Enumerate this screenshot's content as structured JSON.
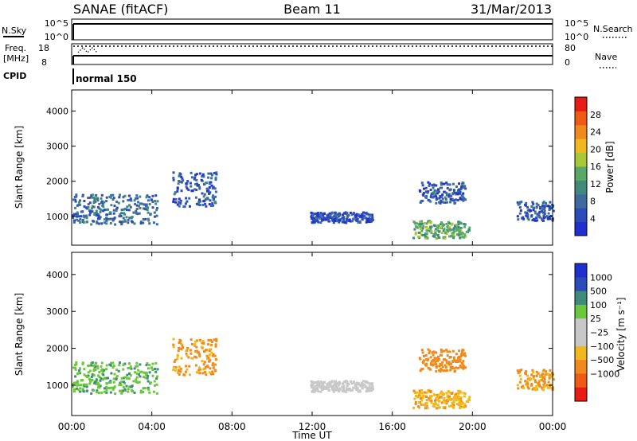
{
  "header": {
    "station": "SANAE (fitACF)",
    "beam": "Beam 11",
    "date": "31/Mar/2013"
  },
  "status_panels": {
    "nsky": {
      "label": "N.Sky",
      "ticks": [
        "10^5",
        "10^0"
      ]
    },
    "nsearch": {
      "label": "N.Search",
      "ticks": [
        "10^5",
        "10^0"
      ]
    },
    "freq": {
      "label_top": "Freq.",
      "label_unit": "[MHz]",
      "ticks": [
        "18",
        "8"
      ]
    },
    "nave": {
      "label": "Nave",
      "ticks": [
        "80",
        "0"
      ]
    },
    "cpid": {
      "label": "CPID",
      "value": "normal 150"
    }
  },
  "colors": {
    "power": [
      "#1f2fd0",
      "#2a4bb8",
      "#3f6aa0",
      "#3f8a7a",
      "#58a868",
      "#a8c838",
      "#f0b81c",
      "#f08a1c",
      "#f05a14",
      "#e81c14"
    ],
    "velocity": [
      "#e81c14",
      "#f05a14",
      "#f08a1c",
      "#f0b81c",
      "#c8c8c8",
      "#c8c8c8",
      "#6ac83a",
      "#3f8a7a",
      "#2a4bb8",
      "#1f2fd0"
    ]
  },
  "chart_data": [
    {
      "type": "heatmap",
      "title": "",
      "xlabel": "",
      "ylabel": "Slant Range [km]",
      "xlim": [
        0,
        24
      ],
      "ylim": [
        180,
        4600
      ],
      "y_ticks": [
        "1000",
        "2000",
        "3000",
        "4000"
      ],
      "y_tick_values": [
        1000,
        2000,
        3000,
        4000
      ],
      "colorbar": {
        "label": "Power [dB]",
        "ticks": [
          "4",
          "8",
          "12",
          "16",
          "20",
          "24",
          "28"
        ],
        "tick_values": [
          4,
          8,
          12,
          16,
          20,
          24,
          28
        ],
        "range": [
          0,
          32
        ]
      },
      "echo_regions": [
        {
          "t0": 0.0,
          "t1": 4.3,
          "r0": 800,
          "r1": 1650,
          "level": 8
        },
        {
          "t0": 5.0,
          "t1": 7.2,
          "r0": 1300,
          "r1": 2300,
          "level": 6
        },
        {
          "t0": 11.9,
          "t1": 15.0,
          "r0": 850,
          "r1": 1150,
          "level": 5
        },
        {
          "t0": 17.3,
          "t1": 19.6,
          "r0": 1400,
          "r1": 2000,
          "level": 6
        },
        {
          "t0": 17.0,
          "t1": 19.8,
          "r0": 400,
          "r1": 900,
          "level": 14
        },
        {
          "t0": 22.2,
          "t1": 24.0,
          "r0": 900,
          "r1": 1450,
          "level": 6
        }
      ]
    },
    {
      "type": "heatmap",
      "title": "",
      "xlabel": "Time UT",
      "ylabel": "Slant Range [km]",
      "xlim": [
        0,
        24
      ],
      "ylim": [
        180,
        4600
      ],
      "x_ticks": [
        "00:00",
        "04:00",
        "08:00",
        "12:00",
        "16:00",
        "20:00",
        "00:00"
      ],
      "x_tick_values": [
        0,
        4,
        8,
        12,
        16,
        20,
        24
      ],
      "y_ticks": [
        "1000",
        "2000",
        "3000",
        "4000"
      ],
      "y_tick_values": [
        1000,
        2000,
        3000,
        4000
      ],
      "colorbar": {
        "label": "Velocity [m s⁻¹]",
        "ticks": [
          "1000",
          "500",
          "100",
          "25",
          "−25",
          "−100",
          "−500",
          "−1000"
        ],
        "tick_values": [
          1000,
          500,
          100,
          25,
          -25,
          -100,
          -500,
          -1000
        ]
      },
      "echo_regions": [
        {
          "t0": 0.0,
          "t1": 4.3,
          "r0": 800,
          "r1": 1650,
          "velocity": 80
        },
        {
          "t0": 5.0,
          "t1": 7.2,
          "r0": 1300,
          "r1": 2300,
          "velocity": -150
        },
        {
          "t0": 11.9,
          "t1": 15.0,
          "r0": 850,
          "r1": 1150,
          "velocity": 0
        },
        {
          "t0": 17.3,
          "t1": 19.6,
          "r0": 1400,
          "r1": 2000,
          "velocity": -300
        },
        {
          "t0": 17.0,
          "t1": 19.8,
          "r0": 400,
          "r1": 900,
          "velocity": -80
        },
        {
          "t0": 22.2,
          "t1": 24.0,
          "r0": 900,
          "r1": 1450,
          "velocity": -120
        }
      ]
    }
  ]
}
